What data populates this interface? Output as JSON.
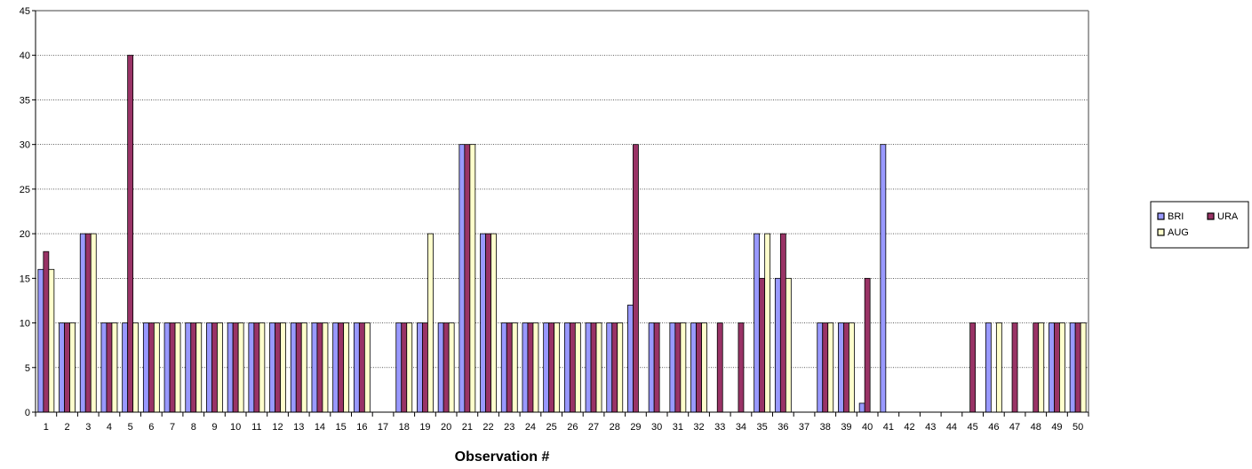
{
  "chart_data": {
    "type": "bar",
    "title": "",
    "xlabel": "Observation #",
    "ylabel": "",
    "ylim": [
      0,
      45
    ],
    "ytick_step": 5,
    "grid": "horizontal dotted",
    "legend_position": "right",
    "categories": [
      "1",
      "2",
      "3",
      "4",
      "5",
      "6",
      "7",
      "8",
      "9",
      "10",
      "11",
      "12",
      "13",
      "14",
      "15",
      "16",
      "17",
      "18",
      "19",
      "20",
      "21",
      "22",
      "23",
      "24",
      "25",
      "26",
      "27",
      "28",
      "29",
      "30",
      "31",
      "32",
      "33",
      "34",
      "35",
      "36",
      "37",
      "38",
      "39",
      "40",
      "41",
      "42",
      "43",
      "44",
      "45",
      "46",
      "47",
      "48",
      "49",
      "50"
    ],
    "series": [
      {
        "name": "BRI",
        "color": "#9999FF",
        "values": [
          16,
          10,
          20,
          10,
          10,
          10,
          10,
          10,
          10,
          10,
          10,
          10,
          10,
          10,
          10,
          10,
          0,
          10,
          10,
          10,
          30,
          20,
          10,
          10,
          10,
          10,
          10,
          10,
          12,
          10,
          10,
          10,
          0,
          0,
          20,
          15,
          0,
          10,
          10,
          1,
          30,
          0,
          0,
          0,
          0,
          10,
          0,
          0,
          10,
          10
        ]
      },
      {
        "name": "URA",
        "color": "#993366",
        "values": [
          18,
          10,
          20,
          10,
          40,
          10,
          10,
          10,
          10,
          10,
          10,
          10,
          10,
          10,
          10,
          10,
          0,
          10,
          10,
          10,
          30,
          20,
          10,
          10,
          10,
          10,
          10,
          10,
          30,
          10,
          10,
          10,
          10,
          10,
          15,
          20,
          0,
          10,
          10,
          15,
          0,
          0,
          0,
          0,
          10,
          0,
          10,
          10,
          10,
          10
        ]
      },
      {
        "name": "AUG",
        "color": "#FFFFCC",
        "values": [
          16,
          10,
          20,
          10,
          10,
          10,
          10,
          10,
          10,
          10,
          10,
          10,
          10,
          10,
          10,
          10,
          0,
          10,
          20,
          10,
          30,
          20,
          10,
          10,
          10,
          10,
          10,
          10,
          0,
          0,
          10,
          10,
          0,
          0,
          20,
          15,
          0,
          10,
          10,
          0,
          0,
          0,
          0,
          0,
          0,
          10,
          0,
          10,
          10,
          10
        ]
      }
    ]
  }
}
